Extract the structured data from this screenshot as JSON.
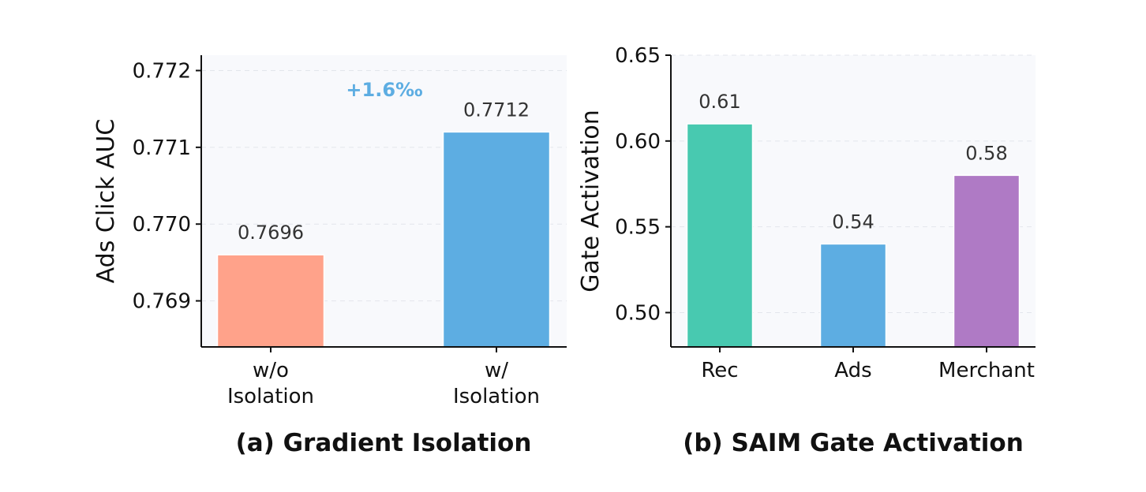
{
  "chart_data": [
    {
      "type": "bar",
      "title": "(a) Gradient Isolation",
      "xlabel": "",
      "ylabel": "Ads Click AUC",
      "categories": [
        [
          "w/o",
          "Isolation"
        ],
        [
          "w/",
          "Isolation"
        ]
      ],
      "values": [
        0.7696,
        0.7712
      ],
      "value_labels": [
        "0.7696",
        "0.7712"
      ],
      "colors": [
        "#FFA28A",
        "#5DADE2"
      ],
      "ylim": [
        0.7684,
        0.7722
      ],
      "yticks": [
        0.769,
        0.77,
        0.771,
        0.772
      ],
      "ytick_labels": [
        "0.769",
        "0.770",
        "0.771",
        "0.772"
      ],
      "grid": true,
      "annotation": {
        "text": "+1.6‰",
        "color": "#5DADE2"
      }
    },
    {
      "type": "bar",
      "title": "(b) SAIM Gate Activation",
      "xlabel": "",
      "ylabel": "Gate Activation",
      "categories": [
        [
          "Rec"
        ],
        [
          "Ads"
        ],
        [
          "Merchant"
        ]
      ],
      "values": [
        0.61,
        0.54,
        0.58
      ],
      "value_labels": [
        "0.61",
        "0.54",
        "0.58"
      ],
      "colors": [
        "#48C9B0",
        "#5DADE2",
        "#AF7AC5"
      ],
      "ylim": [
        0.48,
        0.65
      ],
      "yticks": [
        0.5,
        0.55,
        0.6,
        0.65
      ],
      "ytick_labels": [
        "0.50",
        "0.55",
        "0.60",
        "0.65"
      ],
      "grid": true
    }
  ]
}
